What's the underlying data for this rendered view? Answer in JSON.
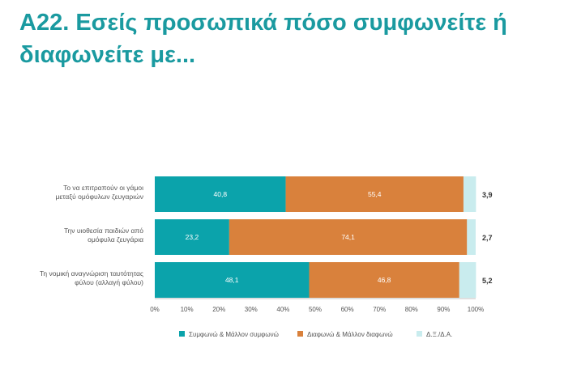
{
  "title": "Α22. Εσείς προσωπικά πόσο συμφωνείτε ή διαφωνείτε με...",
  "chart_data": {
    "type": "bar",
    "orientation": "horizontal",
    "stacked": true,
    "categories": [
      [
        "Το να επιτραπούν οι γάμοι",
        "μεταξύ ομόφυλων ζευγαριών"
      ],
      [
        "Την υιοθεσία παιδιών από",
        "ομόφυλα ζευγάρια"
      ],
      [
        "Τη νομική αναγνώριση ταυτότητας",
        "φύλου (αλλαγή φύλου)"
      ]
    ],
    "series": [
      {
        "name": "Συμφωνώ & Μάλλον συμφωνώ",
        "color": "#0ba3ab",
        "values": [
          40.8,
          23.2,
          48.1
        ],
        "labels": [
          "40,8",
          "23,2",
          "48,1"
        ]
      },
      {
        "name": "Διαφωνώ & Μάλλον διαφωνώ",
        "color": "#d9813c",
        "values": [
          55.4,
          74.1,
          46.8
        ],
        "labels": [
          "55,4",
          "74,1",
          "46,8"
        ]
      },
      {
        "name": "ΔΞ/ΔΑ",
        "color": "#c9ecee",
        "values": [
          3.9,
          2.7,
          5.2
        ],
        "labels": [
          "3,9",
          "2,7",
          "5,2"
        ]
      }
    ],
    "legend_labels": [
      "Συμφωνώ & Μάλλον συμφωνώ",
      "Διαφωνώ & Μάλλον διαφωνώ",
      "Δ.Ξ./Δ.Α."
    ],
    "xticks": [
      "0%",
      "10%",
      "20%",
      "30%",
      "40%",
      "50%",
      "60%",
      "70%",
      "80%",
      "90%",
      "100%"
    ],
    "xlim": [
      0,
      100
    ],
    "legend_position": "bottom",
    "grid": false
  }
}
